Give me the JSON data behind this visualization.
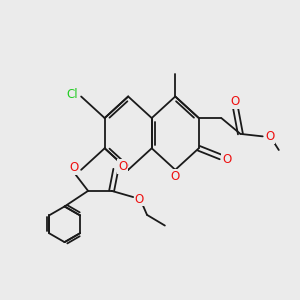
{
  "bg_color": "#ebebeb",
  "bond_color": "#1a1a1a",
  "o_color": "#ee1111",
  "cl_color": "#22cc22",
  "line_width": 1.3,
  "font_size": 8.5,
  "figsize": [
    3.0,
    3.0
  ],
  "dpi": 100,
  "xlim": [
    0,
    12
  ],
  "ylim": [
    0,
    12
  ]
}
